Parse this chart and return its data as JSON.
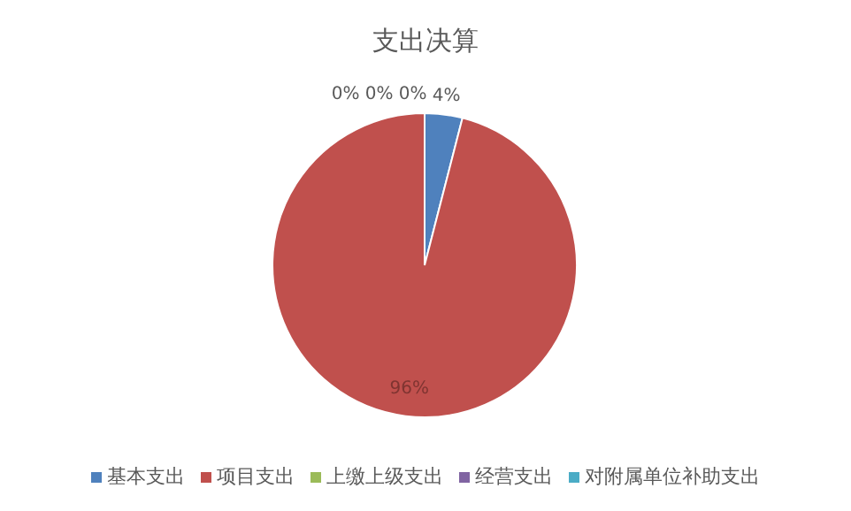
{
  "chart_data": {
    "type": "pie",
    "title": "支出决算",
    "categories": [
      "基本支出",
      "项目支出",
      "上缴上级支出",
      "经营支出",
      "对附属单位补助支出"
    ],
    "values": [
      4,
      96,
      0,
      0,
      0
    ],
    "colors": [
      "#4f81bd",
      "#c0504d",
      "#9bbb59",
      "#8064a2",
      "#4bacc6"
    ],
    "value_labels": [
      "4%",
      "96%",
      "0%",
      "0%",
      "0%"
    ],
    "legend": "bottom"
  }
}
